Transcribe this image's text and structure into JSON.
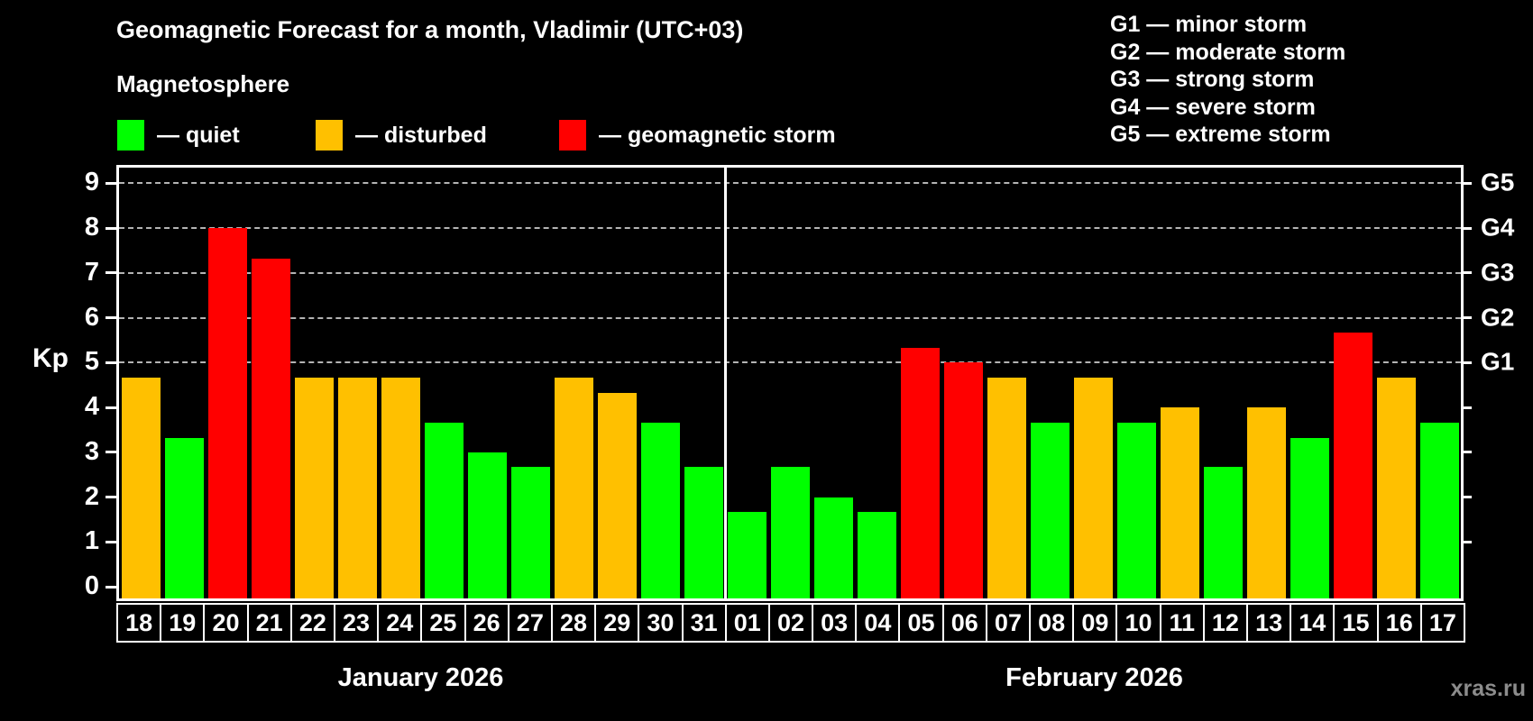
{
  "header": {
    "title": "Geomagnetic Forecast for a month, Vladimir (UTC+03)",
    "subtitle": "Magnetosphere"
  },
  "legend": {
    "items": [
      {
        "id": "quiet",
        "label": "— quiet",
        "color": "#00ff00"
      },
      {
        "id": "disturbed",
        "label": "— disturbed",
        "color": "#ffc000"
      },
      {
        "id": "storm",
        "label": "— geomagnetic storm",
        "color": "#ff0000"
      }
    ]
  },
  "g_legend": {
    "lines": [
      "G1 — minor storm",
      "G2 — moderate storm",
      "G3 — strong storm",
      "G4 — severe storm",
      "G5 — extreme storm"
    ]
  },
  "watermark": {
    "text": "xras.ru"
  },
  "chart_data": {
    "type": "bar",
    "title": "Geomagnetic Forecast for a month, Vladimir (UTC+03)",
    "subtitle": "Magnetosphere",
    "ylabel": "Kp",
    "ylim": [
      0,
      9.4
    ],
    "yticks": [
      0,
      1,
      2,
      3,
      4,
      5,
      6,
      7,
      8,
      9
    ],
    "grid": "dashed horizontal lines at Kp 5-9 only",
    "grid_color": "#b4b4b4",
    "axis_color": "#ffffff",
    "legend_position": "top-left",
    "level_colors": {
      "quiet": "#00ff00",
      "disturbed": "#ffc000",
      "storm": "#ff0000"
    },
    "right_axis": [
      {
        "label": "G5",
        "kp": 9
      },
      {
        "label": "G4",
        "kp": 8
      },
      {
        "label": "G3",
        "kp": 7
      },
      {
        "label": "G2",
        "kp": 6
      },
      {
        "label": "G1",
        "kp": 5
      }
    ],
    "months": [
      {
        "label": "January 2026",
        "bars": [
          {
            "date": "18",
            "kp": 4.67,
            "level": "disturbed"
          },
          {
            "date": "19",
            "kp": 3.33,
            "level": "quiet"
          },
          {
            "date": "20",
            "kp": 8.0,
            "level": "storm"
          },
          {
            "date": "21",
            "kp": 7.33,
            "level": "storm"
          },
          {
            "date": "22",
            "kp": 4.67,
            "level": "disturbed"
          },
          {
            "date": "23",
            "kp": 4.67,
            "level": "disturbed"
          },
          {
            "date": "24",
            "kp": 4.67,
            "level": "disturbed"
          },
          {
            "date": "25",
            "kp": 3.67,
            "level": "quiet"
          },
          {
            "date": "26",
            "kp": 3.0,
            "level": "quiet"
          },
          {
            "date": "27",
            "kp": 2.67,
            "level": "quiet"
          },
          {
            "date": "28",
            "kp": 4.67,
            "level": "disturbed"
          },
          {
            "date": "29",
            "kp": 4.33,
            "level": "disturbed"
          },
          {
            "date": "30",
            "kp": 3.67,
            "level": "quiet"
          },
          {
            "date": "31",
            "kp": 2.67,
            "level": "quiet"
          }
        ]
      },
      {
        "label": "February 2026",
        "bars": [
          {
            "date": "01",
            "kp": 1.67,
            "level": "quiet"
          },
          {
            "date": "02",
            "kp": 2.67,
            "level": "quiet"
          },
          {
            "date": "03",
            "kp": 2.0,
            "level": "quiet"
          },
          {
            "date": "04",
            "kp": 1.67,
            "level": "quiet"
          },
          {
            "date": "05",
            "kp": 5.33,
            "level": "storm"
          },
          {
            "date": "06",
            "kp": 5.0,
            "level": "storm"
          },
          {
            "date": "07",
            "kp": 4.67,
            "level": "disturbed"
          },
          {
            "date": "08",
            "kp": 3.67,
            "level": "quiet"
          },
          {
            "date": "09",
            "kp": 4.67,
            "level": "disturbed"
          },
          {
            "date": "10",
            "kp": 3.67,
            "level": "quiet"
          },
          {
            "date": "11",
            "kp": 4.0,
            "level": "disturbed"
          },
          {
            "date": "12",
            "kp": 2.67,
            "level": "quiet"
          },
          {
            "date": "13",
            "kp": 4.0,
            "level": "disturbed"
          },
          {
            "date": "14",
            "kp": 3.33,
            "level": "quiet"
          },
          {
            "date": "15",
            "kp": 5.67,
            "level": "storm"
          },
          {
            "date": "16",
            "kp": 4.67,
            "level": "disturbed"
          },
          {
            "date": "17",
            "kp": 3.67,
            "level": "quiet"
          }
        ]
      }
    ]
  }
}
